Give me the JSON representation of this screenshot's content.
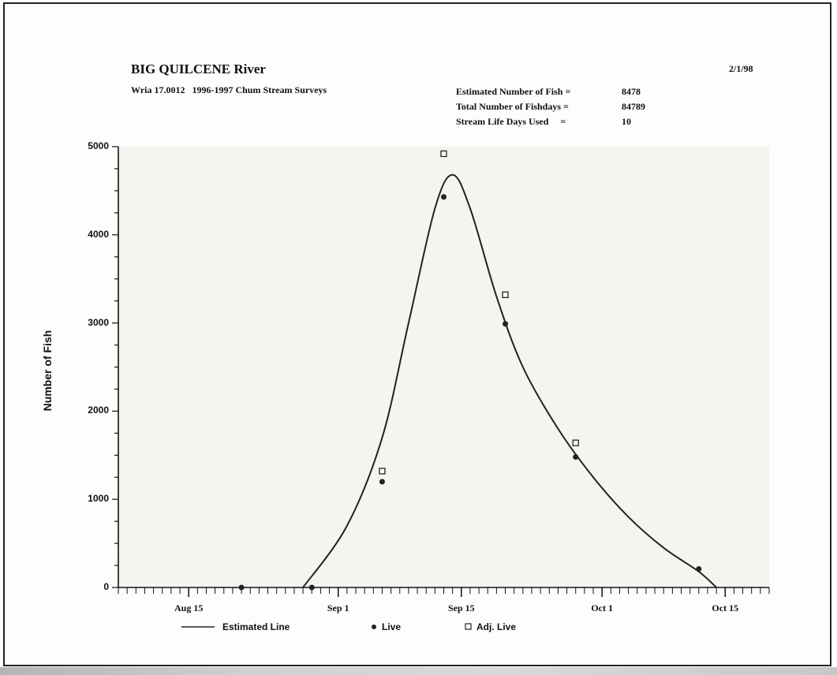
{
  "header": {
    "title": "BIG QUILCENE River",
    "date": "2/1/98",
    "subtitle": "Wria 17.0012   1996-1997 Chum Stream Surveys"
  },
  "stats": [
    {
      "label": "Estimated Number of Fish =",
      "value": "8478"
    },
    {
      "label": "Total Number of Fishdays =",
      "value": "84789"
    },
    {
      "label": "Stream Life Days Used     =",
      "value": "10"
    }
  ],
  "legend": {
    "estimated": "Estimated Line",
    "live": "Live",
    "adj_live": "Adj. Live"
  },
  "chart_data": {
    "type": "line",
    "title": "",
    "xlabel": "",
    "ylabel": "Number of Fish",
    "ylim": [
      0,
      5000
    ],
    "xlim": [
      "Aug 7",
      "Oct 20"
    ],
    "x_tick_labels": [
      "Aug 15",
      "Sep 1",
      "Sep 15",
      "Oct 1",
      "Oct 15"
    ],
    "x_tick_dates": [
      "Aug 15",
      "Sep 1",
      "Sep 15",
      "Oct 1",
      "Oct 15"
    ],
    "y_ticks": [
      0,
      1000,
      2000,
      3000,
      4000,
      5000
    ],
    "grid": false,
    "legend_position": "bottom",
    "series": [
      {
        "name": "Estimated Line",
        "marker": "line",
        "points": [
          {
            "x": "Aug 28",
            "y": 0
          },
          {
            "x": "Sep 2",
            "y": 700
          },
          {
            "x": "Sep 6",
            "y": 1700
          },
          {
            "x": "Sep 9",
            "y": 3000
          },
          {
            "x": "Sep 12",
            "y": 4300
          },
          {
            "x": "Sep 14",
            "y": 4680
          },
          {
            "x": "Sep 16",
            "y": 4300
          },
          {
            "x": "Sep 19",
            "y": 3300
          },
          {
            "x": "Sep 22",
            "y": 2500
          },
          {
            "x": "Sep 26",
            "y": 1800
          },
          {
            "x": "Sep 30",
            "y": 1250
          },
          {
            "x": "Oct 4",
            "y": 800
          },
          {
            "x": "Oct 8",
            "y": 450
          },
          {
            "x": "Oct 12",
            "y": 180
          },
          {
            "x": "Oct 14",
            "y": 0
          }
        ]
      },
      {
        "name": "Live",
        "marker": "dot",
        "points": [
          {
            "x": "Aug 21",
            "y": 0
          },
          {
            "x": "Aug 29",
            "y": 0
          },
          {
            "x": "Sep 6",
            "y": 1200
          },
          {
            "x": "Sep 13",
            "y": 4430
          },
          {
            "x": "Sep 20",
            "y": 2990
          },
          {
            "x": "Sep 28",
            "y": 1480
          },
          {
            "x": "Oct 12",
            "y": 210
          }
        ]
      },
      {
        "name": "Adj. Live",
        "marker": "square",
        "points": [
          {
            "x": "Sep 6",
            "y": 1320
          },
          {
            "x": "Sep 13",
            "y": 4920
          },
          {
            "x": "Sep 20",
            "y": 3320
          },
          {
            "x": "Sep 28",
            "y": 1640
          }
        ]
      }
    ]
  }
}
